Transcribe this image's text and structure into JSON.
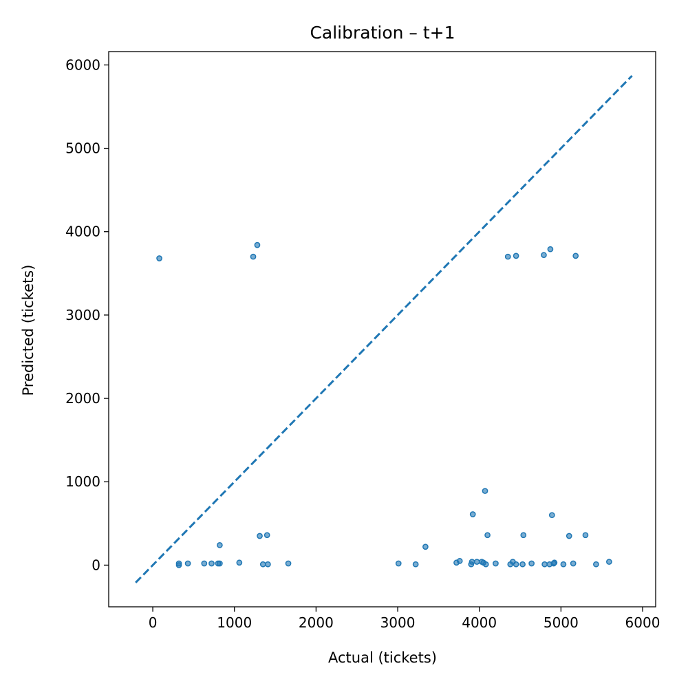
{
  "chart_data": {
    "type": "scatter",
    "title": "Calibration – t+1",
    "xlabel": "Actual (tickets)",
    "ylabel": "Predicted (tickets)",
    "xlim": [
      -540,
      6160
    ],
    "ylim": [
      -500,
      6160
    ],
    "xticks": [
      0,
      1000,
      2000,
      3000,
      4000,
      5000,
      6000
    ],
    "yticks": [
      0,
      1000,
      2000,
      3000,
      4000,
      5000,
      6000
    ],
    "xtick_labels": [
      "0",
      "1000",
      "2000",
      "3000",
      "4000",
      "5000",
      "6000"
    ],
    "ytick_labels": [
      "0",
      "1000",
      "2000",
      "3000",
      "4000",
      "5000",
      "6000"
    ],
    "grid": false,
    "reference_line": {
      "style": "dashed",
      "from": [
        -210,
        -210
      ],
      "to": [
        5870,
        5870
      ]
    },
    "series": [
      {
        "color": "#1f77b4",
        "x": [
          80,
          1230,
          1280,
          4350,
          4450,
          4790,
          4870,
          5180,
          320,
          320,
          430,
          630,
          720,
          800,
          820,
          820,
          1060,
          1310,
          1350,
          1400,
          1410,
          1660,
          3010,
          3220,
          3340,
          3720,
          3760,
          3900,
          3910,
          3920,
          3970,
          4030,
          4050,
          4070,
          4080,
          4100,
          4200,
          4380,
          4410,
          4450,
          4530,
          4540,
          4640,
          4800,
          4860,
          4890,
          4910,
          4920,
          5030,
          5100,
          5150,
          5300,
          5430,
          5590
        ],
        "y": [
          3680,
          3700,
          3840,
          3700,
          3710,
          3720,
          3790,
          3710,
          20,
          0,
          20,
          20,
          20,
          20,
          20,
          240,
          30,
          350,
          10,
          360,
          10,
          20,
          20,
          10,
          220,
          30,
          50,
          10,
          40,
          610,
          40,
          40,
          30,
          890,
          10,
          360,
          20,
          10,
          40,
          10,
          10,
          360,
          20,
          10,
          10,
          600,
          20,
          30,
          10,
          350,
          20,
          360,
          10,
          40
        ]
      }
    ]
  }
}
